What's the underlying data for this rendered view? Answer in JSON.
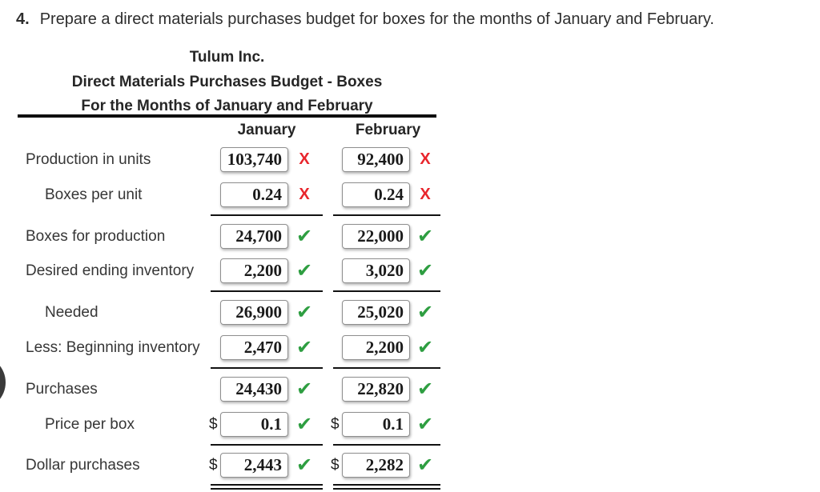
{
  "instruction": {
    "number": "4.",
    "text": "Prepare a direct materials purchases budget for boxes for the months of January and February."
  },
  "header": {
    "company": "Tulum Inc.",
    "report": "Direct Materials Purchases Budget - Boxes",
    "period": "For the Months of January and February"
  },
  "columns": {
    "jan": "January",
    "feb": "February"
  },
  "rows": [
    {
      "label": "Production in units",
      "indent": false,
      "dollar": false,
      "jan": "103,740",
      "feb": "92,400",
      "jan_status": "wrong",
      "feb_status": "wrong",
      "rule_below": "none"
    },
    {
      "label": "Boxes per unit",
      "indent": true,
      "dollar": false,
      "jan": "0.24",
      "feb": "0.24",
      "jan_status": "wrong",
      "feb_status": "wrong",
      "rule_below": "single"
    },
    {
      "label": "Boxes for production",
      "indent": false,
      "dollar": false,
      "jan": "24,700",
      "feb": "22,000",
      "jan_status": "correct",
      "feb_status": "correct",
      "rule_below": "none"
    },
    {
      "label": "Desired ending inventory",
      "indent": false,
      "dollar": false,
      "jan": "2,200",
      "feb": "3,020",
      "jan_status": "correct",
      "feb_status": "correct",
      "rule_below": "single"
    },
    {
      "label": "Needed",
      "indent": true,
      "dollar": false,
      "jan": "26,900",
      "feb": "25,020",
      "jan_status": "correct",
      "feb_status": "correct",
      "rule_below": "none"
    },
    {
      "label": "Less: Beginning inventory",
      "indent": false,
      "dollar": false,
      "jan": "2,470",
      "feb": "2,200",
      "jan_status": "correct",
      "feb_status": "correct",
      "rule_below": "single"
    },
    {
      "label": "Purchases",
      "indent": false,
      "dollar": false,
      "jan": "24,430",
      "feb": "22,820",
      "jan_status": "correct",
      "feb_status": "correct",
      "rule_below": "none"
    },
    {
      "label": "Price per box",
      "indent": true,
      "dollar": true,
      "jan": "0.1",
      "feb": "0.1",
      "jan_status": "correct",
      "feb_status": "correct",
      "rule_below": "single"
    },
    {
      "label": "Dollar purchases",
      "indent": false,
      "dollar": true,
      "jan": "2,443",
      "feb": "2,282",
      "jan_status": "correct",
      "feb_status": "correct",
      "rule_below": "double"
    }
  ],
  "icons": {
    "correct_icon": "✔",
    "wrong_icon": "X",
    "dollar_sign": "$"
  },
  "colors": {
    "correct": "#2e9e41",
    "wrong": "#e8252c"
  }
}
